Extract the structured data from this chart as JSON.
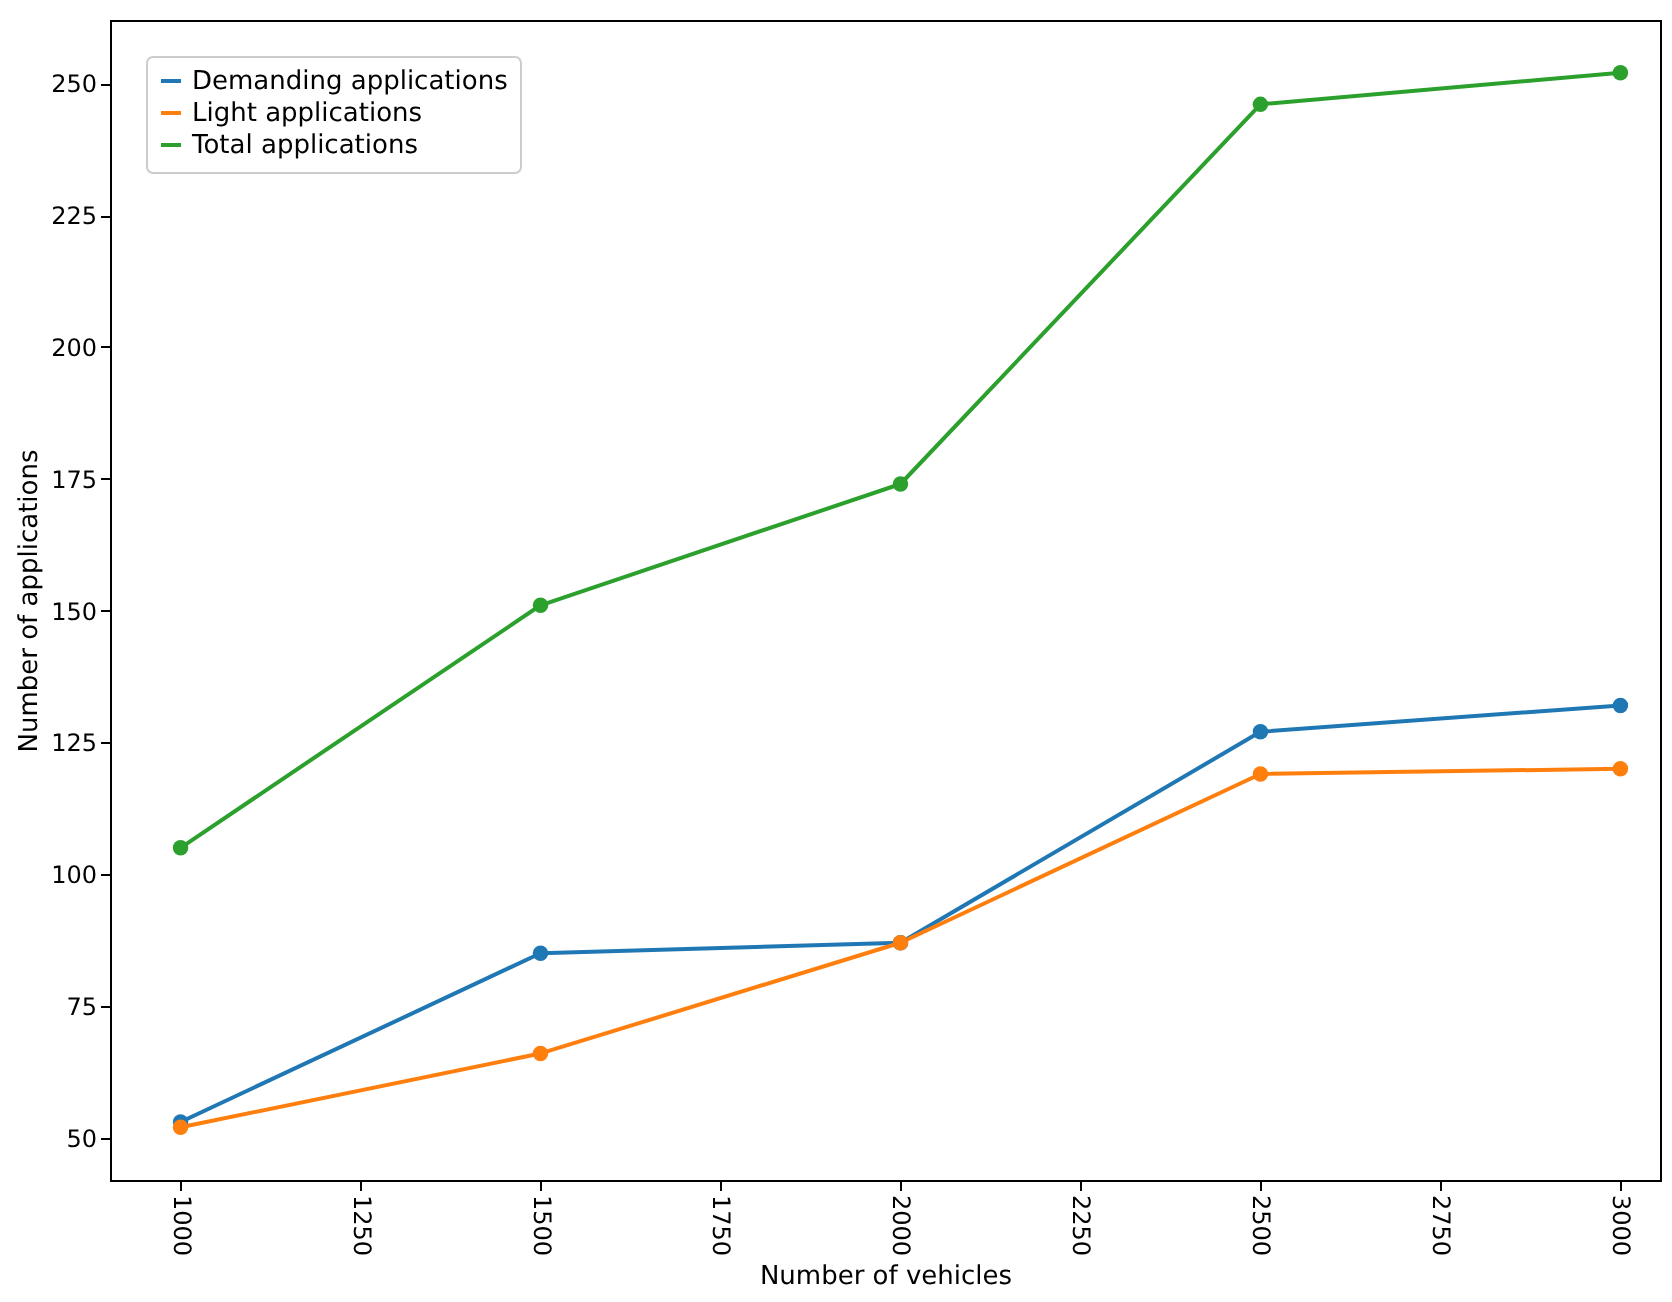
{
  "chart_data": {
    "type": "line",
    "xlabel": "Number of vehicles",
    "ylabel": "Number of applications",
    "x": [
      1000,
      1500,
      2000,
      2500,
      3000
    ],
    "series": [
      {
        "name": "Demanding applications",
        "color": "#1f77b4",
        "values": [
          53,
          85,
          87,
          127,
          132
        ]
      },
      {
        "name": "Light applications",
        "color": "#ff7f0e",
        "values": [
          52,
          66,
          87,
          119,
          120
        ]
      },
      {
        "name": "Total applications",
        "color": "#2ca02c",
        "values": [
          105,
          151,
          174,
          246,
          252
        ]
      }
    ],
    "xlim": [
      902,
      3055
    ],
    "ylim": [
      42,
      262
    ],
    "xticks": [
      1000,
      1250,
      1500,
      1750,
      2000,
      2250,
      2500,
      2750,
      3000
    ],
    "yticks": [
      50,
      75,
      100,
      125,
      150,
      175,
      200,
      225,
      250
    ],
    "grid": false,
    "legend": "top left",
    "marker": "circle",
    "line_style": "solid"
  }
}
